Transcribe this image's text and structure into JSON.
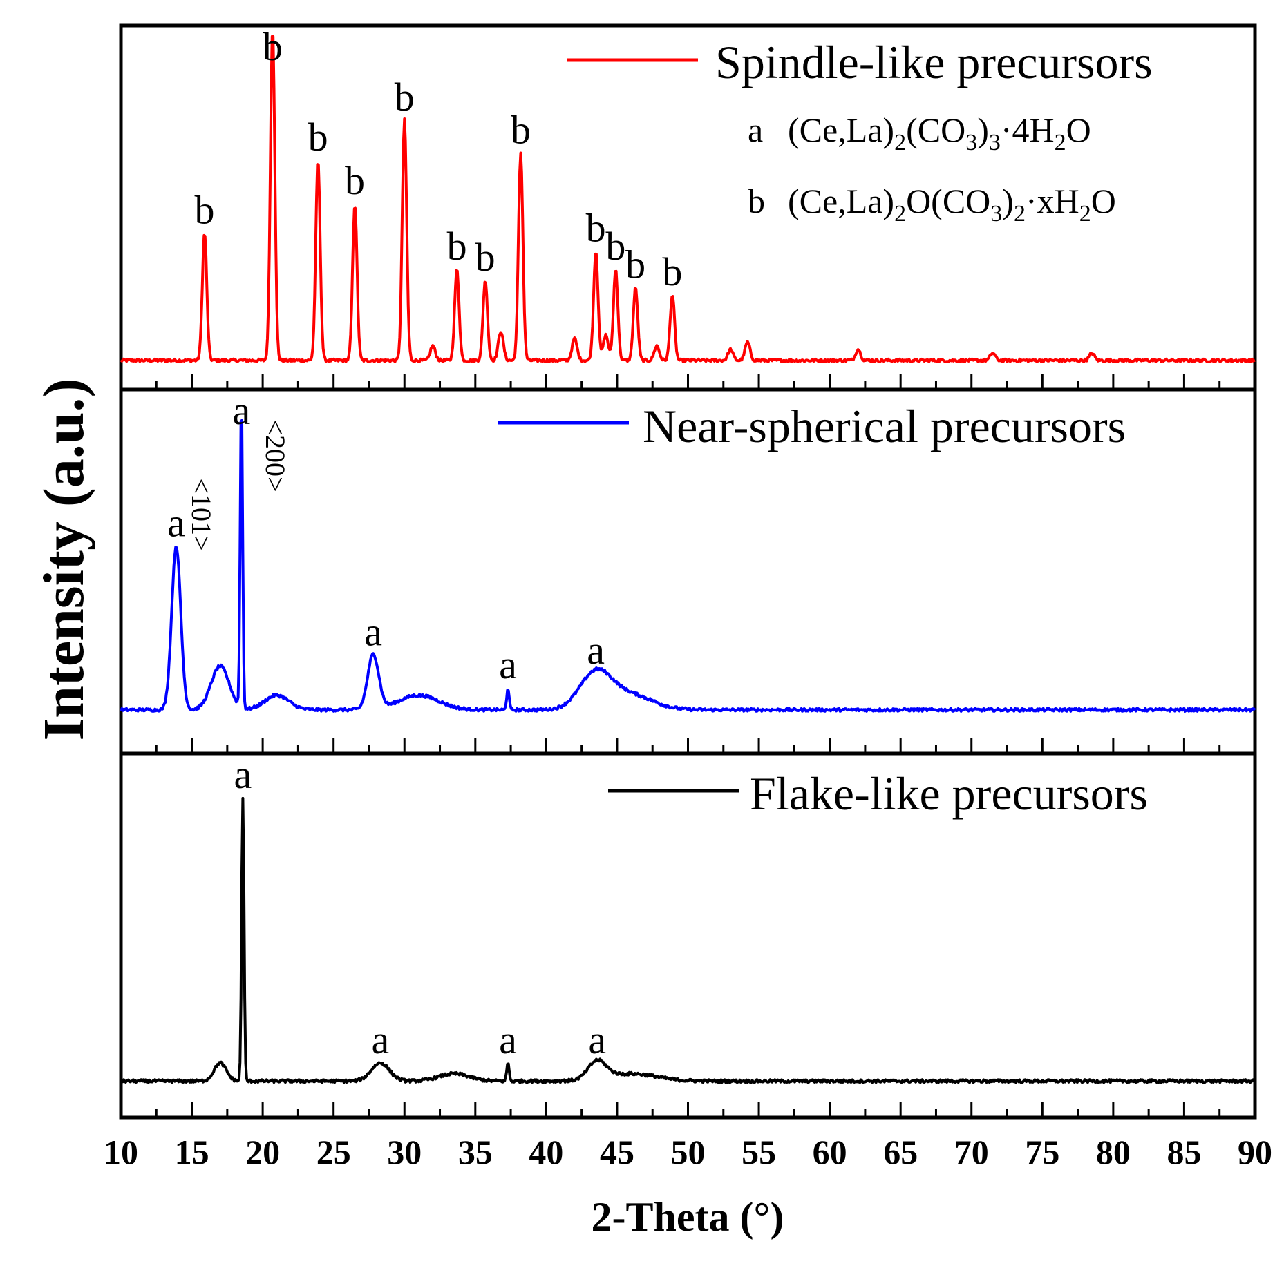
{
  "chart_data": {
    "type": "line",
    "xlabel": "2-Theta (°)",
    "ylabel": "Intensity (a.u.)",
    "xlim": [
      10,
      90
    ],
    "x_ticks": [
      "10",
      "15",
      "20",
      "25",
      "30",
      "35",
      "40",
      "45",
      "50",
      "55",
      "60",
      "65",
      "70",
      "75",
      "80",
      "85",
      "90"
    ],
    "panels": [
      {
        "name": "Spindle-like precursors",
        "color": "#ff0000",
        "baseline": 0.08,
        "peaks": [
          {
            "x": 15.9,
            "h": 0.35,
            "label": "b"
          },
          {
            "x": 20.7,
            "h": 0.92,
            "label": "b"
          },
          {
            "x": 23.9,
            "h": 0.55,
            "label": "b"
          },
          {
            "x": 26.5,
            "h": 0.43,
            "label": "b"
          },
          {
            "x": 30.0,
            "h": 0.66,
            "label": "b"
          },
          {
            "x": 33.7,
            "h": 0.25,
            "label": "b"
          },
          {
            "x": 35.7,
            "h": 0.22,
            "label": "b"
          },
          {
            "x": 38.2,
            "h": 0.57,
            "label": "b"
          },
          {
            "x": 43.5,
            "h": 0.3,
            "label": "b"
          },
          {
            "x": 44.9,
            "h": 0.25,
            "label": "b"
          },
          {
            "x": 46.3,
            "h": 0.2,
            "label": "b"
          },
          {
            "x": 48.9,
            "h": 0.18,
            "label": "b"
          }
        ],
        "legend": {
          "series": "Spindle-like precursors",
          "phase_a_code": "a",
          "phase_a_formula": "(Ce,La)2(CO3)3·4H2O",
          "phase_b_code": "b",
          "phase_b_formula": "(Ce,La)2O(CO3)2·xH2O"
        }
      },
      {
        "name": "Near-spherical precursors",
        "color": "#0000ff",
        "baseline": 0.12,
        "peaks": [
          {
            "x": 13.9,
            "h": 0.45,
            "label": "a"
          },
          {
            "x": 18.5,
            "h": 0.85,
            "label": "a"
          },
          {
            "x": 27.8,
            "h": 0.15,
            "label": "a"
          },
          {
            "x": 37.3,
            "h": 0.06,
            "label": "a"
          },
          {
            "x": 43.5,
            "h": 0.1,
            "label": "a"
          }
        ],
        "annotations": [
          "<101>",
          "<200>"
        ]
      },
      {
        "name": "Flake-like precursors",
        "color": "#000000",
        "baseline": 0.1,
        "peaks": [
          {
            "x": 18.6,
            "h": 0.78,
            "label": "a"
          },
          {
            "x": 28.3,
            "h": 0.05,
            "label": "a"
          },
          {
            "x": 37.3,
            "h": 0.05,
            "label": "a"
          },
          {
            "x": 43.6,
            "h": 0.05,
            "label": "a"
          }
        ]
      }
    ]
  }
}
